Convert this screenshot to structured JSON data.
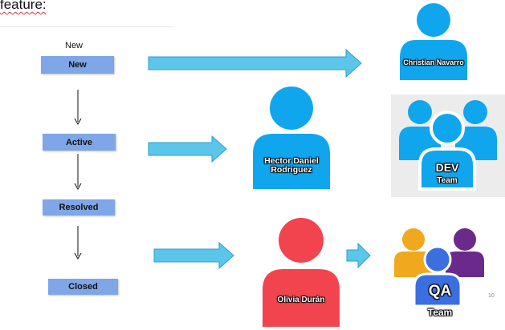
{
  "heading": "feature:",
  "states": {
    "caption": "New",
    "items": [
      "New",
      "Active",
      "Resolved",
      "Closed"
    ]
  },
  "people": {
    "christian": "Christian Navarro",
    "hector": "Hector Daniel Rodriguez",
    "olivia": "Olivia Durán"
  },
  "teams": {
    "dev_title": "DEV",
    "dev_sub": "Team",
    "qa_title": "QA",
    "qa_sub": "Team"
  },
  "page_number": "10",
  "colors": {
    "state_box": "#7fa6e6",
    "arrow": "#5bc5ea",
    "arrow_border": "#2e9fd1",
    "person_blue": "#10a6ee",
    "person_red": "#f2444f",
    "qa_orange": "#f0a81e",
    "qa_purple": "#6a2a8c",
    "qa_blue": "#3b6fe0"
  }
}
